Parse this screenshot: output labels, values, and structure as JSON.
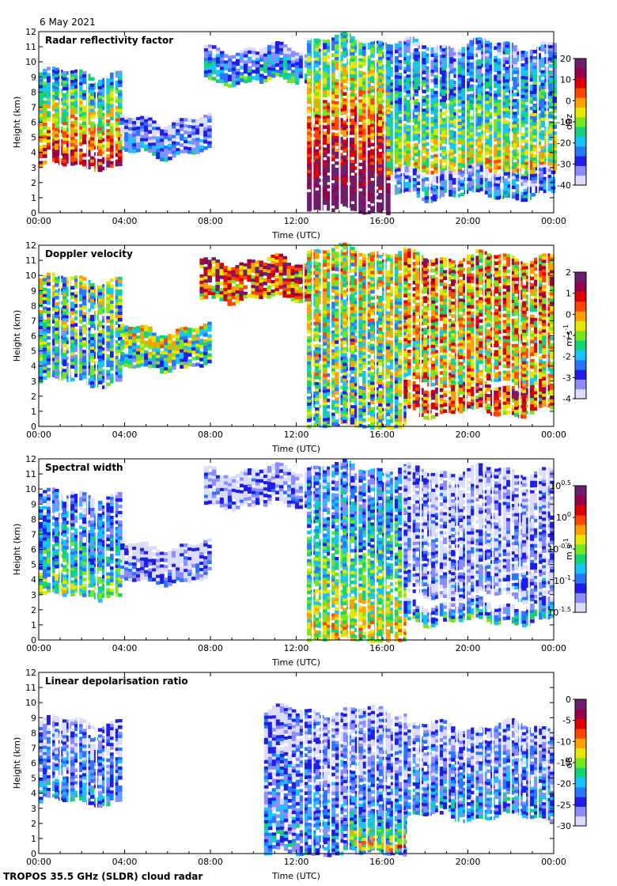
{
  "date": "6 May 2021",
  "footer": "TROPOS 35.5 GHz (SLDR) cloud radar",
  "chart_data": [
    {
      "type": "heatmap",
      "title": "Radar reflectivity factor",
      "xlabel": "Time (UTC)",
      "ylabel": "Height (km)",
      "x_ticks": [
        "00:00",
        "04:00",
        "08:00",
        "12:00",
        "16:00",
        "20:00",
        "00:00"
      ],
      "xlim_hours": [
        0,
        24
      ],
      "ylim": [
        0,
        12
      ],
      "y_ticks": [
        0,
        1,
        2,
        3,
        4,
        5,
        6,
        7,
        8,
        9,
        10,
        11,
        12
      ],
      "colorbar": {
        "unit": "dBz",
        "min": -40,
        "max": 20,
        "ticks": [
          "20",
          "10",
          "0",
          "-10",
          "-20",
          "-30",
          "-40"
        ]
      },
      "field": "refl",
      "echo_regions": [
        {
          "t0": 0,
          "t1": 3.8,
          "base": 3.2,
          "top": 9.3,
          "core": 0.65
        },
        {
          "t0": 3.8,
          "t1": 8,
          "base": 4.0,
          "top": 6.2,
          "core": 0.2
        },
        {
          "t0": 7.7,
          "t1": 12.5,
          "base": 8.8,
          "top": 10.9,
          "core": 0.3
        },
        {
          "t0": 12.5,
          "t1": 16.2,
          "base": 0.2,
          "top": 11.5,
          "core": 0.85
        },
        {
          "t0": 16.2,
          "t1": 24,
          "base": 2.8,
          "top": 11.2,
          "core": 0.45
        },
        {
          "t0": 16.5,
          "t1": 24,
          "base": 1.2,
          "top": 2.8,
          "core": 0.25
        }
      ]
    },
    {
      "type": "heatmap",
      "title": "Doppler velocity",
      "xlabel": "Time (UTC)",
      "ylabel": "Height (km)",
      "x_ticks": [
        "00:00",
        "04:00",
        "08:00",
        "12:00",
        "16:00",
        "20:00",
        "00:00"
      ],
      "xlim_hours": [
        0,
        24
      ],
      "ylim": [
        0,
        12
      ],
      "y_ticks": [
        0,
        1,
        2,
        3,
        4,
        5,
        6,
        7,
        8,
        9,
        10,
        11,
        12
      ],
      "colorbar": {
        "unit": "m s-1",
        "min": -4,
        "max": 2,
        "ticks": [
          "2",
          "1",
          "0",
          "-1",
          "-2",
          "-3",
          "-4"
        ]
      },
      "field": "vel",
      "echo_regions": [
        {
          "t0": 0,
          "t1": 3.8,
          "base": 3.0,
          "top": 9.8,
          "core": 0.45
        },
        {
          "t0": 3.8,
          "t1": 8,
          "base": 4.0,
          "top": 6.5,
          "core": 0.5
        },
        {
          "t0": 7.5,
          "t1": 12.5,
          "base": 8.5,
          "top": 11.0,
          "core": 0.8
        },
        {
          "t0": 12.5,
          "t1": 17,
          "base": 0.0,
          "top": 11.7,
          "core": 0.55
        },
        {
          "t0": 17,
          "t1": 24,
          "base": 3.0,
          "top": 11.3,
          "core": 0.7
        },
        {
          "t0": 17,
          "t1": 24,
          "base": 1.0,
          "top": 2.8,
          "core": 0.8
        }
      ]
    },
    {
      "type": "heatmap",
      "title": "Spectral width",
      "xlabel": "Time (UTC)",
      "ylabel": "Height (km)",
      "x_ticks": [
        "00:00",
        "04:00",
        "08:00",
        "12:00",
        "16:00",
        "20:00",
        "00:00"
      ],
      "xlim_hours": [
        0,
        24
      ],
      "ylim": [
        0,
        12
      ],
      "y_ticks": [
        0,
        1,
        2,
        3,
        4,
        5,
        6,
        7,
        8,
        9,
        10,
        11,
        12
      ],
      "colorbar": {
        "unit": "m s-1",
        "min": "10^-1.5",
        "max": "10^0.5",
        "ticks": [
          "10^0.5",
          "10^0",
          "10^-0.5",
          "10^-1",
          "10^-1.5"
        ]
      },
      "field": "width",
      "echo_regions": [
        {
          "t0": 0,
          "t1": 3.8,
          "base": 3.0,
          "top": 9.7,
          "core": 0.35
        },
        {
          "t0": 3.8,
          "t1": 8,
          "base": 4.0,
          "top": 6.3,
          "core": 0.1
        },
        {
          "t0": 7.7,
          "t1": 12.5,
          "base": 9.0,
          "top": 11.3,
          "core": 0.1
        },
        {
          "t0": 12.5,
          "t1": 17,
          "base": 0.0,
          "top": 11.5,
          "core": 0.45
        },
        {
          "t0": 17,
          "t1": 24,
          "base": 3.0,
          "top": 11.3,
          "core": 0.12
        },
        {
          "t0": 17,
          "t1": 24,
          "base": 1.3,
          "top": 2.5,
          "core": 0.3
        }
      ]
    },
    {
      "type": "heatmap",
      "title": "Linear depolarisation ratio",
      "xlabel": "Time (UTC)",
      "ylabel": "Height (km)",
      "x_ticks": [
        "00:00",
        "04:00",
        "08:00",
        "12:00",
        "16:00",
        "20:00",
        "00:00"
      ],
      "xlim_hours": [
        0,
        24
      ],
      "ylim": [
        0,
        12
      ],
      "y_ticks": [
        0,
        1,
        2,
        3,
        4,
        5,
        6,
        7,
        8,
        9,
        10,
        11,
        12
      ],
      "colorbar": {
        "unit": "dB",
        "min": -30,
        "max": 0,
        "ticks": [
          "0",
          "-5",
          "-10",
          "-15",
          "-20",
          "-25",
          "-30"
        ]
      },
      "field": "ldr",
      "echo_regions": [
        {
          "t0": 0,
          "t1": 3.7,
          "base": 3.5,
          "top": 8.8,
          "core": 0.2
        },
        {
          "t0": 10.5,
          "t1": 17,
          "base": 0.0,
          "top": 9.5,
          "core": 0.2
        },
        {
          "t0": 17,
          "t1": 24,
          "base": 2.5,
          "top": 8.5,
          "core": 0.22
        },
        {
          "t0": 14.5,
          "t1": 17,
          "base": 0.5,
          "top": 3.0,
          "core": 0.5
        }
      ]
    }
  ]
}
